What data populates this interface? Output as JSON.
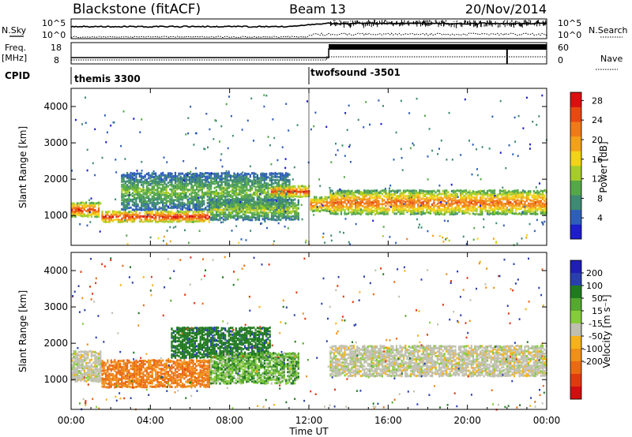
{
  "header": {
    "station": "Blackstone (fitACF)",
    "beam": "Beam 13",
    "date": "20/Nov/2014"
  },
  "aux_labels": {
    "nsky": "N.Sky",
    "nsearch": "N.Search",
    "freq": "Freq.",
    "freq_unit": "[MHz]",
    "nave": "Nave",
    "cpid": "CPID",
    "nsky_top": "10^5",
    "nsky_bottom": "10^0",
    "nsearch_top": "10^5",
    "nsearch_bottom": "10^0",
    "freq_top": "18",
    "freq_bottom": "8",
    "nave_top": "60",
    "nave_bottom": "0"
  },
  "cpid_programs": [
    {
      "label": "themis 3300",
      "start_hour": 0
    },
    {
      "label": "twofsound -3501",
      "start_hour": 12
    }
  ],
  "chart_data": [
    {
      "type": "heatmap",
      "name": "power",
      "ylabel": "Slant Range [km]",
      "xlabel": "Time UT",
      "x_ticks": [
        "00:00",
        "04:00",
        "08:00",
        "12:00",
        "16:00",
        "20:00",
        "00:00"
      ],
      "x_range_hours": [
        0,
        24
      ],
      "y_ticks": [
        1000,
        2000,
        3000,
        4000
      ],
      "y_range_km": [
        180,
        4500
      ],
      "colorbar": {
        "label": "Power [dB]",
        "ticks": [
          "4",
          "8",
          "12",
          "16",
          "20",
          "24",
          "28"
        ],
        "range": [
          0,
          30
        ],
        "colors": [
          "#1d1dcc",
          "#2e5fb8",
          "#3f8a72",
          "#55a848",
          "#a6cc2a",
          "#f2d21a",
          "#f2a21a",
          "#f07a18",
          "#e84812",
          "#d81010"
        ]
      },
      "bands": [
        {
          "from_hour": 0.0,
          "to_hour": 1.5,
          "center_km": 1150,
          "half_width_km": 180,
          "peak_db": 26
        },
        {
          "from_hour": 1.5,
          "to_hour": 7.0,
          "center_km": 960,
          "half_width_km": 140,
          "peak_db": 27
        },
        {
          "from_hour": 2.5,
          "to_hour": 11.0,
          "center_km": 1650,
          "half_width_km": 500,
          "peak_db": 12
        },
        {
          "from_hour": 7.0,
          "to_hour": 11.5,
          "center_km": 1150,
          "half_width_km": 250,
          "peak_db": 14
        },
        {
          "from_hour": 10.0,
          "to_hour": 12.0,
          "center_km": 1650,
          "half_width_km": 120,
          "peak_db": 26
        },
        {
          "from_hour": 12.0,
          "to_hour": 13.0,
          "center_km": 1300,
          "half_width_km": 200,
          "peak_db": 24
        },
        {
          "from_hour": 13.0,
          "to_hour": 24.0,
          "center_km": 1350,
          "half_width_km": 300,
          "peak_db": 24
        }
      ]
    },
    {
      "type": "heatmap",
      "name": "velocity",
      "ylabel": "Slant Range [km]",
      "xlabel": "Time UT",
      "x_ticks": [
        "00:00",
        "04:00",
        "08:00",
        "12:00",
        "16:00",
        "20:00",
        "00:00"
      ],
      "x_range_hours": [
        0,
        24
      ],
      "y_ticks": [
        1000,
        2000,
        3000,
        4000
      ],
      "y_range_km": [
        180,
        4500
      ],
      "colorbar": {
        "label": "Velocity [m s⁻¹]",
        "ticks": [
          "200",
          "100",
          "50",
          "15",
          "-15",
          "-50",
          "-100",
          "-200"
        ],
        "colors": [
          "#1f1fb4",
          "#2a3fae",
          "#207a20",
          "#55a830",
          "#86cc3a",
          "#c0c0b0",
          "#f5b21a",
          "#f0901a",
          "#ea6a14",
          "#e03a10",
          "#d01010"
        ]
      },
      "bands": [
        {
          "from_hour": 0.0,
          "to_hour": 1.5,
          "center_km": 1350,
          "half_width_km": 400,
          "velocity": 0
        },
        {
          "from_hour": 1.5,
          "to_hour": 7.0,
          "center_km": 1150,
          "half_width_km": 350,
          "velocity": -75
        },
        {
          "from_hour": 5.0,
          "to_hour": 10.0,
          "center_km": 2000,
          "half_width_km": 400,
          "velocity": 60
        },
        {
          "from_hour": 7.0,
          "to_hour": 11.5,
          "center_km": 1300,
          "half_width_km": 400,
          "velocity": 30
        },
        {
          "from_hour": 13.0,
          "to_hour": 24.0,
          "center_km": 1500,
          "half_width_km": 400,
          "velocity": 0
        }
      ]
    }
  ]
}
